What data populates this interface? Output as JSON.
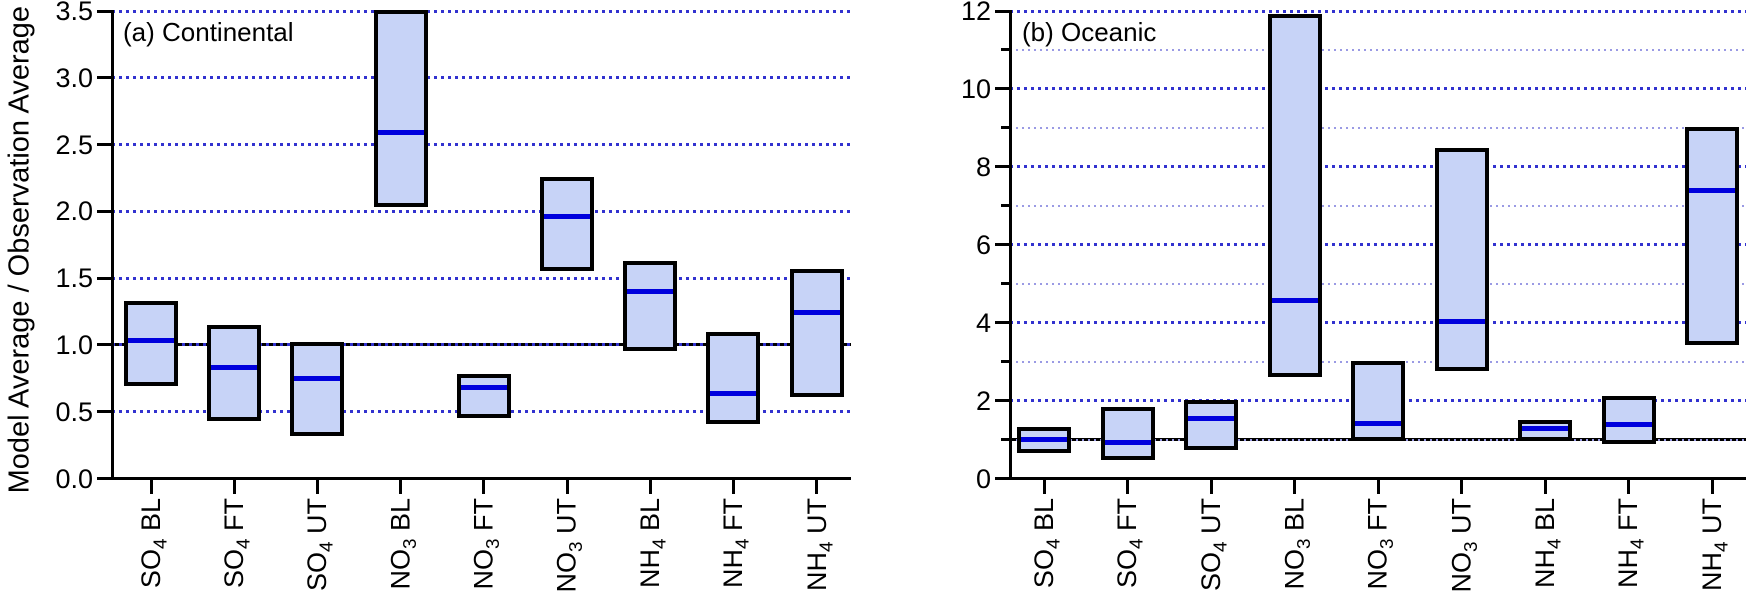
{
  "figure": {
    "ylabel": "Model Average / Observation Average",
    "background": "#ffffff"
  },
  "colors": {
    "bar_fill": "#c7d3f7",
    "bar_border": "#000000",
    "median_line": "#0000dd",
    "grid_major": "#3232cf",
    "grid_minor": "#9a9ae4",
    "axis": "#000000",
    "reference_line": "#000000"
  },
  "chart_data": [
    {
      "type": "bar",
      "subtype": "floating-range-bars-with-median",
      "title": "(a) Continental",
      "categories": [
        "SO4 BL",
        "SO4 FT",
        "SO4 UT",
        "NO3 BL",
        "NO3 FT",
        "NO3 UT",
        "NH4 BL",
        "NH4 FT",
        "NH4 UT"
      ],
      "bars": [
        {
          "category": "SO4 BL",
          "low": 0.71,
          "high": 1.31,
          "median": 1.03
        },
        {
          "category": "SO4 FT",
          "low": 0.45,
          "high": 1.13,
          "median": 0.83
        },
        {
          "category": "SO4 UT",
          "low": 0.34,
          "high": 1.0,
          "median": 0.75
        },
        {
          "category": "NO3 BL",
          "low": 2.05,
          "high": 3.49,
          "median": 2.59
        },
        {
          "category": "NO3 FT",
          "low": 0.47,
          "high": 0.76,
          "median": 0.68
        },
        {
          "category": "NO3 UT",
          "low": 1.57,
          "high": 2.24,
          "median": 1.96
        },
        {
          "category": "NH4 BL",
          "low": 0.97,
          "high": 1.61,
          "median": 1.4
        },
        {
          "category": "NH4 FT",
          "low": 0.43,
          "high": 1.08,
          "median": 0.64
        },
        {
          "category": "NH4 UT",
          "low": 0.63,
          "high": 1.55,
          "median": 1.24
        }
      ],
      "ylim": [
        0,
        3.5
      ],
      "yticks": [
        {
          "value": 0.0,
          "label": "0.0"
        },
        {
          "value": 0.5,
          "label": "0.5"
        },
        {
          "value": 1.0,
          "label": "1.0"
        },
        {
          "value": 1.5,
          "label": "1.5"
        },
        {
          "value": 2.0,
          "label": "2.0"
        },
        {
          "value": 2.5,
          "label": "2.5"
        },
        {
          "value": 3.0,
          "label": "3.0"
        },
        {
          "value": 3.5,
          "label": "3.5"
        }
      ],
      "yticks_minor": [],
      "reference_line_y": 1.0,
      "grid": "horizontal dotted",
      "legend": "none"
    },
    {
      "type": "bar",
      "subtype": "floating-range-bars-with-median",
      "title": "(b) Oceanic",
      "categories": [
        "SO4 BL",
        "SO4 FT",
        "SO4 UT",
        "NO3 BL",
        "NO3 FT",
        "NO3 UT",
        "NH4 BL",
        "NH4 FT",
        "NH4 UT"
      ],
      "bars": [
        {
          "category": "SO4 BL",
          "low": 0.71,
          "high": 1.26,
          "median": 1.01
        },
        {
          "category": "SO4 FT",
          "low": 0.53,
          "high": 1.77,
          "median": 0.92
        },
        {
          "category": "SO4 UT",
          "low": 0.79,
          "high": 1.96,
          "median": 1.55
        },
        {
          "category": "NO3 BL",
          "low": 2.66,
          "high": 11.85,
          "median": 4.58
        },
        {
          "category": "NO3 FT",
          "low": 1.03,
          "high": 2.95,
          "median": 1.4
        },
        {
          "category": "NO3 UT",
          "low": 2.83,
          "high": 8.43,
          "median": 4.02
        },
        {
          "category": "NH4 BL",
          "low": 1.03,
          "high": 1.44,
          "median": 1.28
        },
        {
          "category": "NH4 FT",
          "low": 0.94,
          "high": 2.06,
          "median": 1.38
        },
        {
          "category": "NH4 UT",
          "low": 3.5,
          "high": 8.95,
          "median": 7.39
        }
      ],
      "ylim": [
        0,
        12
      ],
      "yticks": [
        {
          "value": 0,
          "label": "0"
        },
        {
          "value": 2,
          "label": "2"
        },
        {
          "value": 4,
          "label": "4"
        },
        {
          "value": 6,
          "label": "6"
        },
        {
          "value": 8,
          "label": "8"
        },
        {
          "value": 10,
          "label": "10"
        },
        {
          "value": 12,
          "label": "12"
        }
      ],
      "yticks_minor": [
        1,
        3,
        5,
        7,
        9,
        11
      ],
      "reference_line_y": 1.0,
      "grid": "horizontal dotted",
      "legend": "none"
    }
  ]
}
